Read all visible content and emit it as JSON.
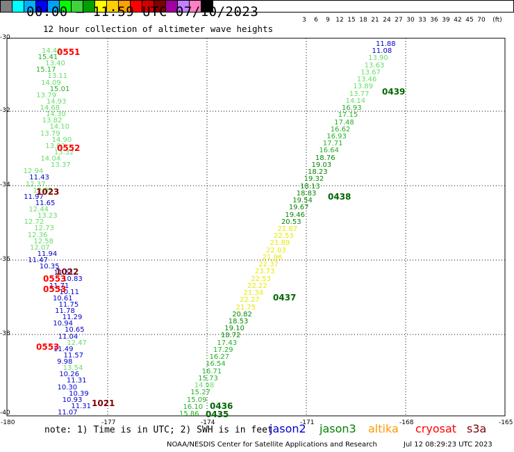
{
  "header": {
    "title": "00:00 – 11:59 UTC 07/10/2023",
    "subtitle": "12 hour collection of altimeter wave heights"
  },
  "scale": {
    "colors": [
      "#808080",
      "#00ffff",
      "#00b0ff",
      "#0000ff",
      "#00a0ff",
      "#00ff00",
      "#40d040",
      "#00a000",
      "#ffff00",
      "#ffd000",
      "#ffa000",
      "#ff0000",
      "#d00000",
      "#800000",
      "#a000a0",
      "#c080ff",
      "#ff80c0",
      "#000000"
    ],
    "labels": [
      "3",
      "6",
      "9",
      "12",
      "15",
      "18",
      "21",
      "24",
      "27",
      "30",
      "33",
      "36",
      "39",
      "42",
      "45",
      "70",
      "(ft)"
    ]
  },
  "map": {
    "lon_ticks": [
      "-180",
      "-177",
      "-174",
      "-171",
      "-168",
      "-165"
    ],
    "lat_ticks": [
      "-30",
      "-32",
      "-34",
      "-36",
      "-38",
      "-40"
    ],
    "right_track": {
      "values": [
        "11.88",
        "11.08",
        "13.90",
        "13.63",
        "13.67",
        "13.46",
        "13.89",
        "13.77",
        "14.14",
        "16.93",
        "17.15",
        "17.48",
        "16.62",
        "16.93",
        "17.71",
        "16.64",
        "18.76",
        "19.03",
        "18.23",
        "19.32",
        "18.13",
        "18.83",
        "19.54",
        "19.67",
        "19.46",
        "20.53",
        "21.87",
        "22.53",
        "21.89",
        "22.03",
        "21.96",
        "22.37",
        "23.73",
        "22.53",
        "22.22",
        "21.34",
        "22.27",
        "21.75",
        "20.82",
        "18.53",
        "19.10",
        "18.72",
        "17.43",
        "17.29",
        "16.27",
        "16.54",
        "16.71",
        "15.73",
        "14.98",
        "15.27",
        "15.09",
        "16.10",
        "15.86"
      ],
      "passes": [
        "0439",
        "0438",
        "0437",
        "0436",
        "0435"
      ]
    },
    "left_track": {
      "values": [
        "14.43",
        "15.41",
        "13.40",
        "15.17",
        "13.11",
        "14.09",
        "15.01",
        "13.79",
        "14.93",
        "14.68",
        "14.30",
        "13.82",
        "14.10",
        "13.79",
        "14.90",
        "13.90",
        "13.32",
        "14.04",
        "13.37",
        "12.94",
        "11.43",
        "12.37",
        "12.82",
        "11.97",
        "11.65",
        "12.44",
        "13.23",
        "12.72",
        "12.73",
        "12.36",
        "12.58",
        "12.07",
        "11.94",
        "11.47",
        "10.35",
        "11.51",
        "10.83",
        "11.71",
        "10.11",
        "10.61",
        "11.75",
        "11.78",
        "11.29",
        "10.94",
        "10.65",
        "11.04",
        "12.47",
        "11.49",
        "11.57",
        "9.98",
        "13.54",
        "10.26",
        "11.31",
        "10.30",
        "10.39",
        "10.93",
        "11.31",
        "11.07"
      ],
      "passes": [
        "0551",
        "0552",
        "1023",
        "1022",
        "0553",
        "0553",
        "0553",
        "1021"
      ]
    }
  },
  "footer": {
    "note": "note:  1) Time is in UTC;  2) SWH is in feet",
    "satellites": [
      {
        "name": "jason2",
        "color": "#0000cc"
      },
      {
        "name": "jason3",
        "color": "#008000"
      },
      {
        "name": "altika",
        "color": "#ff9900"
      },
      {
        "name": "cryosat",
        "color": "#ff0000"
      },
      {
        "name": "s3a",
        "color": "#800000"
      }
    ],
    "credit": "NOAA/NESDIS Center for Satellite Applications and Research",
    "stamp": "Jul 12 08:29:23 UTC 2023"
  }
}
